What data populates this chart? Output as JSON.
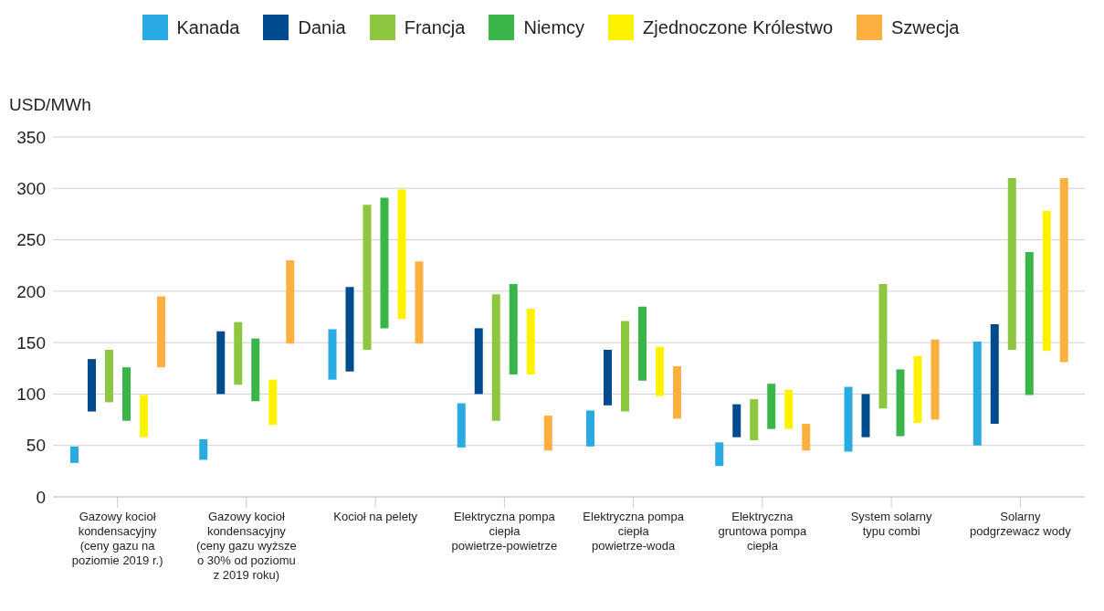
{
  "chart_data": {
    "type": "bar",
    "ylabel": "USD/MWh",
    "categories": [
      "Gazowy kocioł kondensacyjny (ceny gazu na poziomie 2019 r.)",
      "Gazowy kocioł kondensacyjny (ceny gazu wyższe o 30% od poziomu z 2019 roku)",
      "Kocioł na pelety",
      "Elektryczna pompa ciepła powietrze-powietrze",
      "Elektryczna pompa ciepła powietrze-woda",
      "Elektryczna gruntowa pompa ciepła",
      "System solarny typu combi",
      "Solarny podgrzewacz wody"
    ],
    "series": [
      {
        "name": "Kanada",
        "color": "#29abe2",
        "base": [
          33,
          36,
          114,
          48,
          49,
          30,
          44,
          50
        ],
        "values": [
          16,
          20,
          49,
          43,
          35,
          23,
          63,
          101
        ]
      },
      {
        "name": "Dania",
        "color": "#004b8d",
        "base": [
          83,
          100,
          122,
          100,
          89,
          58,
          58,
          71
        ],
        "values": [
          51,
          61,
          82,
          64,
          54,
          32,
          42,
          97
        ]
      },
      {
        "name": "Francja",
        "color": "#8dc63f",
        "base": [
          92,
          109,
          143,
          74,
          83,
          55,
          86,
          143
        ],
        "values": [
          51,
          61,
          141,
          123,
          88,
          40,
          121,
          167
        ]
      },
      {
        "name": "Niemcy",
        "color": "#39b54a",
        "base": [
          74,
          93,
          164,
          119,
          113,
          66,
          59,
          99
        ],
        "values": [
          52,
          61,
          127,
          88,
          72,
          44,
          65,
          139
        ]
      },
      {
        "name": "Zjednoczone Królestwo",
        "color": "#fff200",
        "base": [
          58,
          70,
          173,
          119,
          98,
          66,
          72,
          142
        ],
        "values": [
          41,
          44,
          126,
          64,
          48,
          38,
          65,
          136
        ]
      },
      {
        "name": "Szwecja",
        "color": "#fbb040",
        "base": [
          126,
          149,
          149,
          45,
          76,
          45,
          75,
          131
        ],
        "values": [
          69,
          81,
          80,
          34,
          51,
          26,
          78,
          179
        ]
      }
    ],
    "ylim": [
      0,
      350
    ],
    "yticks": [
      0,
      50,
      100,
      150,
      200,
      250,
      300,
      350
    ],
    "grid": "y",
    "legend": "top"
  }
}
